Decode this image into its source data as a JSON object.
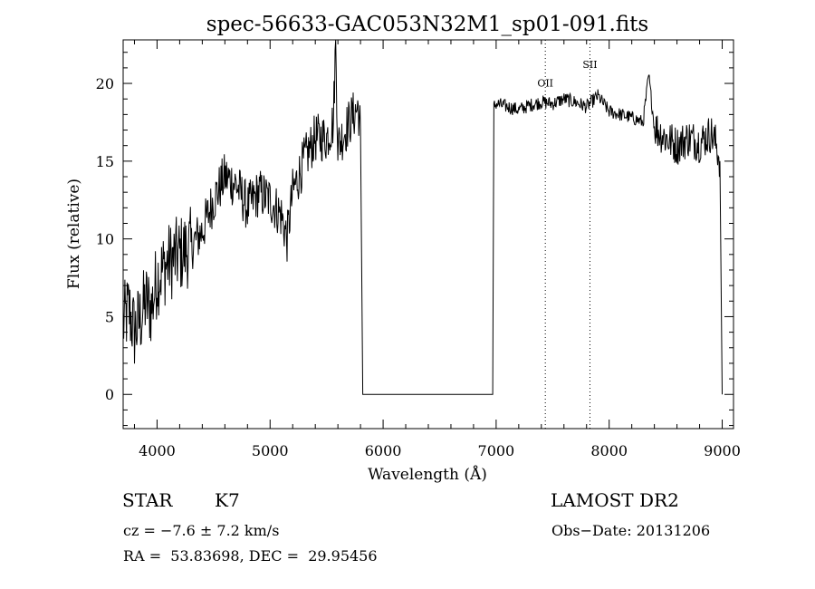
{
  "chart_data": {
    "type": "line",
    "title": "spec-56633-GAC053N32M1_sp01-091.fits",
    "xlabel": "Wavelength (Å)",
    "ylabel": "Flux (relative)",
    "xlim": [
      3700,
      9100
    ],
    "ylim": [
      -2.2,
      22.8
    ],
    "xticks": [
      4000,
      5000,
      6000,
      7000,
      8000,
      9000
    ],
    "yticks": [
      0,
      5,
      10,
      15,
      20
    ],
    "xtick_labels": [
      "4000",
      "5000",
      "6000",
      "7000",
      "8000",
      "9000"
    ],
    "ytick_labels": [
      "0",
      "5",
      "10",
      "15",
      "20"
    ],
    "grid": false,
    "series": [
      {
        "x": [
          3700,
          3750,
          3800,
          3850,
          3900,
          3950,
          4000,
          4100,
          4200,
          4300,
          4400,
          4500,
          4600,
          4700,
          4800,
          4900,
          5000,
          5100,
          5150,
          5200,
          5300,
          5400,
          5500,
          5560,
          5580,
          5600,
          5700,
          5780,
          5800,
          5820,
          6000,
          6500,
          6950,
          6970,
          6980,
          7000,
          7100,
          7200,
          7300,
          7400,
          7500,
          7600,
          7700,
          7800,
          7900,
          8000,
          8100,
          8200,
          8300,
          8350,
          8400,
          8500,
          8600,
          8700,
          8800,
          8900,
          8950,
          8980,
          9000
        ],
        "y": [
          4.5,
          5.5,
          4.0,
          4.8,
          6.0,
          5.5,
          7.5,
          8.5,
          9.0,
          9.5,
          10.5,
          12.5,
          14.0,
          13.5,
          12.0,
          13.0,
          12.5,
          11.5,
          10.0,
          13.0,
          15.0,
          16.5,
          16.5,
          17.5,
          22.8,
          16.0,
          17.5,
          18.5,
          17.0,
          0.0,
          0.0,
          0.0,
          0.0,
          0.0,
          18.5,
          18.7,
          18.5,
          18.3,
          18.6,
          18.8,
          18.7,
          19.0,
          18.8,
          18.5,
          19.2,
          18.2,
          18.0,
          17.8,
          17.5,
          20.5,
          17.2,
          16.5,
          16.0,
          16.5,
          16.2,
          16.8,
          16.0,
          15.0,
          0.0
        ]
      }
    ],
    "annotations": [
      {
        "text": "OII",
        "x": 7435,
        "y": 19.8
      },
      {
        "text": "SII",
        "x": 7830,
        "y": 21.0
      }
    ],
    "reference_lines_x": [
      7435,
      7830
    ]
  },
  "info": {
    "object_type": "STAR",
    "subclass": "K7",
    "survey": "LAMOST DR2",
    "cz": "cz = −7.6 ± 7.2 km/s",
    "obs_date": "Obs−Date: 20131206",
    "coords": "RA =  53.83698, DEC =  29.95456"
  }
}
